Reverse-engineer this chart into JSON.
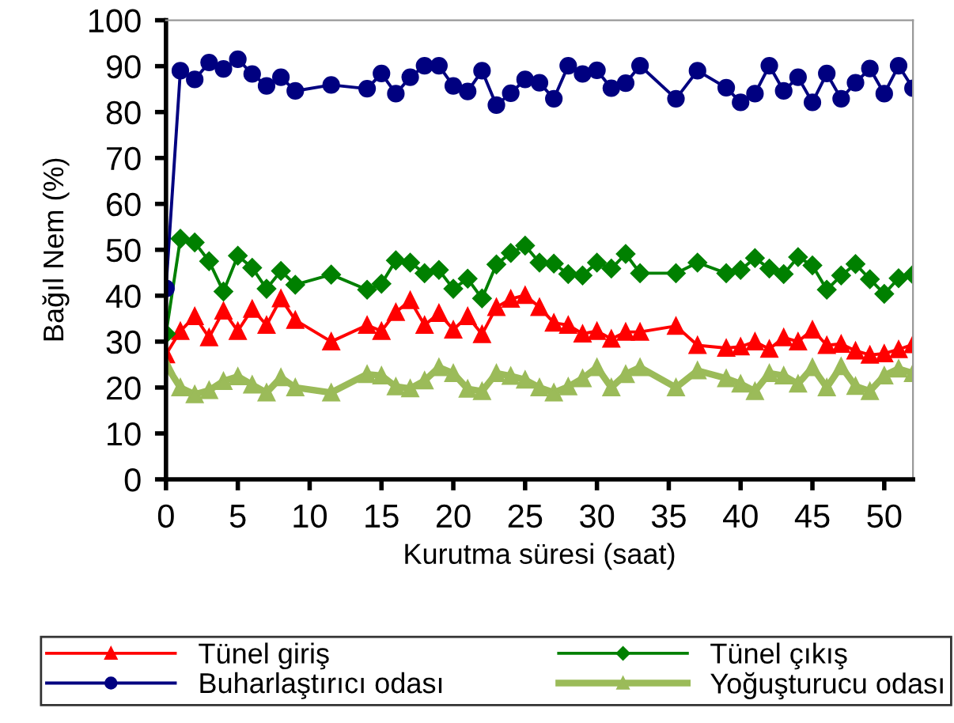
{
  "chart_data": {
    "type": "line",
    "xlabel": "Kurutma süresi (saat)",
    "ylabel": "Bağıl Nem (%)",
    "x": [
      0,
      1,
      2,
      3,
      4,
      5,
      6,
      7,
      8,
      9,
      11.5,
      14,
      15,
      16,
      17,
      18,
      19,
      20,
      21,
      22,
      23,
      24,
      25,
      26,
      27,
      28,
      29,
      30,
      31,
      32,
      33,
      35.5,
      37,
      39,
      40,
      41,
      42,
      43,
      44,
      45,
      46,
      47,
      48,
      49,
      50,
      51,
      52
    ],
    "xlim": [
      0,
      52
    ],
    "xticks": [
      0,
      5,
      10,
      15,
      20,
      25,
      30,
      35,
      40,
      45,
      50
    ],
    "ylim": [
      0,
      100
    ],
    "yticks": [
      0,
      10,
      20,
      30,
      40,
      50,
      60,
      70,
      80,
      90,
      100
    ],
    "grid": false,
    "legend": "bottom",
    "line_style": "solid",
    "series": [
      {
        "name": "Tünel giriş",
        "color": "#ff0000",
        "marker": "triangle",
        "values": [
          27.2,
          32.3,
          35.5,
          30.9,
          36.7,
          32.3,
          37.1,
          33.6,
          39.4,
          34.7,
          30.0,
          33.6,
          32.3,
          36.4,
          39.0,
          33.6,
          36.2,
          32.6,
          35.5,
          31.6,
          37.5,
          39.3,
          40.1,
          37.5,
          34.1,
          33.6,
          31.7,
          32.3,
          30.6,
          32.1,
          32.1,
          33.4,
          29.2,
          28.6,
          28.9,
          30.0,
          28.4,
          30.9,
          30.0,
          32.6,
          29.2,
          29.5,
          28.0,
          27.1,
          27.4,
          28.3,
          29.4
        ]
      },
      {
        "name": "Tünel çıkış",
        "color": "#008000",
        "marker": "diamond",
        "values": [
          31.7,
          52.4,
          51.6,
          47.5,
          40.9,
          48.7,
          46.1,
          41.5,
          45.4,
          42.4,
          44.6,
          41.3,
          42.6,
          47.7,
          47.2,
          44.9,
          45.6,
          41.5,
          43.7,
          39.4,
          46.8,
          49.3,
          50.9,
          47.2,
          47.0,
          44.7,
          44.4,
          47.2,
          45.9,
          49.1,
          44.9,
          44.9,
          47.2,
          44.9,
          45.6,
          48.2,
          45.9,
          44.7,
          48.4,
          46.6,
          41.3,
          44.4,
          46.9,
          43.6,
          40.4,
          43.8,
          44.6
        ]
      },
      {
        "name": "Buharlaştırıcı odası",
        "color": "#000080",
        "marker": "circle",
        "values": [
          41.6,
          89.0,
          87.1,
          90.8,
          89.4,
          91.5,
          88.3,
          85.7,
          87.6,
          84.6,
          85.9,
          85.1,
          88.4,
          84.0,
          87.6,
          90.1,
          90.1,
          85.7,
          84.5,
          89.0,
          81.5,
          84.1,
          87.1,
          86.4,
          82.9,
          90.1,
          88.3,
          89.1,
          85.2,
          86.3,
          90.1,
          82.9,
          89.0,
          85.3,
          82.1,
          84.0,
          90.1,
          84.6,
          87.6,
          82.1,
          88.4,
          82.9,
          86.4,
          89.5,
          84.0,
          90.1,
          85.2
        ]
      },
      {
        "name": "Yoğuşturucu odası",
        "color": "#9bbb59",
        "marker": "triangle",
        "values": [
          24.9,
          20.0,
          18.5,
          19.4,
          21.4,
          22.4,
          20.6,
          18.9,
          22.2,
          20.0,
          18.9,
          22.9,
          22.6,
          20.2,
          19.8,
          21.5,
          24.4,
          23.1,
          19.7,
          19.2,
          23.1,
          22.5,
          21.7,
          20.0,
          18.9,
          20.2,
          22.0,
          24.4,
          20.0,
          22.9,
          24.4,
          20.0,
          23.7,
          22.0,
          20.8,
          19.2,
          23.1,
          22.6,
          20.8,
          24.4,
          20.0,
          24.6,
          20.3,
          19.2,
          22.6,
          24.1,
          23.1
        ]
      }
    ]
  }
}
